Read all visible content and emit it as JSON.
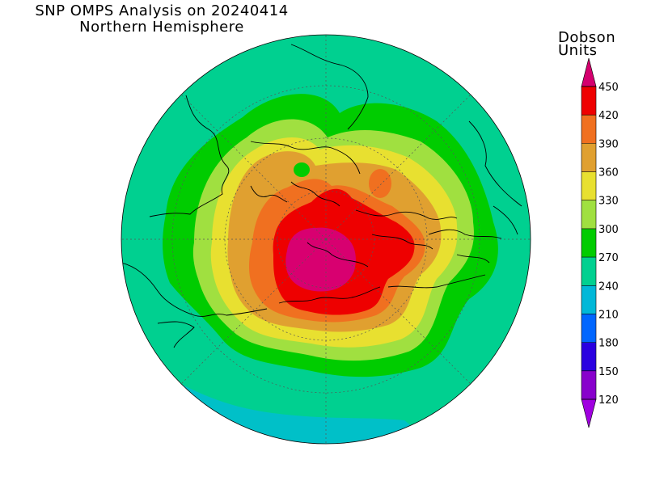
{
  "header": {
    "title": "SNP OMPS Analysis on 20240414",
    "subtitle": "Northern Hemisphere"
  },
  "colorbar": {
    "title_line1": "Dobson",
    "title_line2": "Units",
    "ticks": [
      "120",
      "150",
      "180",
      "210",
      "240",
      "270",
      "300",
      "330",
      "360",
      "390",
      "420",
      "450"
    ],
    "bands": [
      {
        "from": 120,
        "to": 150,
        "color": "#8800cc"
      },
      {
        "from": 150,
        "to": 180,
        "color": "#2a00e0"
      },
      {
        "from": 180,
        "to": 210,
        "color": "#0066ff"
      },
      {
        "from": 210,
        "to": 240,
        "color": "#00b8d8"
      },
      {
        "from": 240,
        "to": 270,
        "color": "#00d090"
      },
      {
        "from": 270,
        "to": 300,
        "color": "#00cc00"
      },
      {
        "from": 300,
        "to": 330,
        "color": "#a0e040"
      },
      {
        "from": 330,
        "to": 360,
        "color": "#e8e030"
      },
      {
        "from": 360,
        "to": 390,
        "color": "#e0a030"
      },
      {
        "from": 390,
        "to": 420,
        "color": "#f07020"
      },
      {
        "from": 420,
        "to": 450,
        "color": "#ee0000"
      }
    ],
    "low_arrow_color": "#a000e0",
    "high_arrow_color": "#d4006e"
  },
  "map": {
    "projection": "polar stereographic, north pole centered",
    "hemisphere": "Northern Hemisphere",
    "ozone_levels_du": [
      240,
      270,
      300,
      330,
      360,
      390,
      420,
      450
    ],
    "max_region_color": "#d80070"
  }
}
